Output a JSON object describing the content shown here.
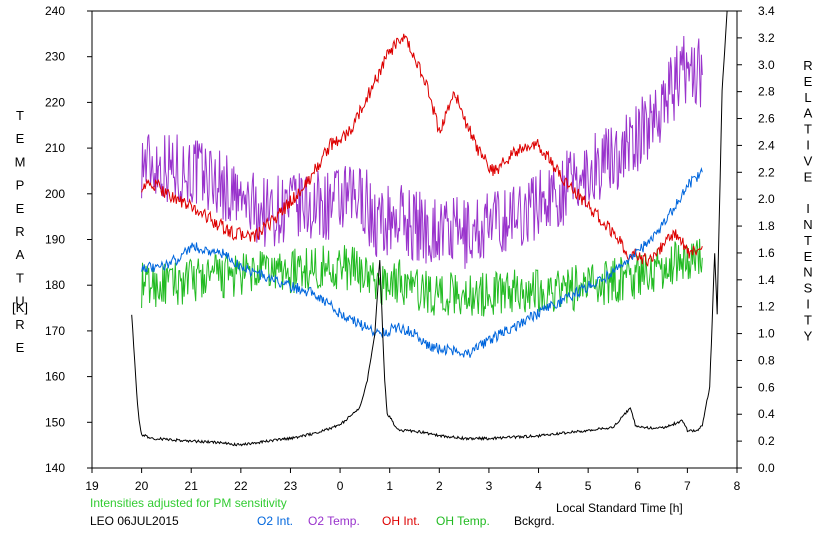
{
  "chart_data": {
    "type": "line",
    "station": "LEO 06JUL2015",
    "note": "Intensities adjusted for PM sensitivity",
    "xlabel": "Local Standard Time [h]",
    "ylabel_left_letters": [
      "T",
      "E",
      "M",
      "P",
      "E",
      "R",
      "A",
      "T",
      "U",
      "R",
      "E"
    ],
    "ylabel_left_unit": "[K]",
    "ylabel_right_letters": [
      "R",
      "E",
      "L",
      "A",
      "T",
      "I",
      "V",
      "E",
      "",
      "I",
      "N",
      "T",
      "E",
      "N",
      "S",
      "I",
      "T",
      "Y"
    ],
    "x_ticks": [
      "19",
      "20",
      "21",
      "22",
      "23",
      "0",
      "1",
      "2",
      "3",
      "4",
      "5",
      "6",
      "7",
      "8"
    ],
    "xlim": [
      19,
      32
    ],
    "ylim_left": [
      140,
      240
    ],
    "ylim_right": [
      0.0,
      3.4
    ],
    "y_left_ticks": [
      "140",
      "150",
      "160",
      "170",
      "180",
      "190",
      "200",
      "210",
      "220",
      "230",
      "240"
    ],
    "y_right_ticks": [
      "0.0",
      "0.2",
      "0.4",
      "0.6",
      "0.8",
      "1.0",
      "1.2",
      "1.4",
      "1.6",
      "1.8",
      "2.0",
      "2.2",
      "2.4",
      "2.6",
      "2.8",
      "3.0",
      "3.2",
      "3.4"
    ],
    "legend": [
      {
        "label": "O2 Int.",
        "color": "#0066dd"
      },
      {
        "label": "O2 Temp.",
        "color": "#9933cc"
      },
      {
        "label": "OH Int.",
        "color": "#dd0000"
      },
      {
        "label": "OH Temp.",
        "color": "#22bb22"
      },
      {
        "label": "Bckgrd.",
        "color": "#000000"
      }
    ],
    "series": [
      {
        "name": "O2 Temp.",
        "axis": "left",
        "color": "#9933cc",
        "noise": 8,
        "x": [
          20.0,
          20.5,
          21.0,
          21.5,
          22.0,
          22.5,
          23.0,
          23.5,
          24.0,
          24.5,
          24.7,
          25.2,
          25.5,
          26.0,
          26.5,
          27.0,
          27.5,
          28.0,
          28.5,
          29.0,
          29.5,
          30.0,
          30.5,
          31.0,
          31.3
        ],
        "y": [
          207,
          206,
          205,
          203,
          198,
          196,
          197,
          197,
          198,
          199,
          193,
          195,
          193,
          192,
          191,
          193,
          195,
          198,
          201,
          205,
          208,
          212,
          220,
          228,
          226
        ]
      },
      {
        "name": "OH Temp.",
        "axis": "left",
        "color": "#22bb22",
        "noise": 5,
        "x": [
          20.0,
          20.5,
          21.0,
          21.5,
          22.0,
          22.5,
          23.0,
          23.5,
          24.0,
          24.5,
          24.7,
          25.2,
          25.5,
          26.0,
          26.5,
          27.0,
          27.5,
          28.0,
          28.5,
          29.0,
          29.5,
          30.0,
          30.5,
          31.0,
          31.3
        ],
        "y": [
          180,
          180,
          181,
          182,
          182,
          183,
          183,
          184,
          184,
          183,
          180,
          181,
          179,
          178,
          178,
          178,
          179,
          179,
          179,
          180,
          181,
          182,
          184,
          186,
          186
        ]
      },
      {
        "name": "OH Int.",
        "axis": "right",
        "color": "#dd0000",
        "noise": 0.05,
        "x": [
          20.0,
          20.3,
          20.7,
          21.2,
          21.6,
          21.8,
          22.3,
          22.8,
          23.3,
          23.8,
          24.2,
          24.6,
          25.0,
          25.3,
          25.7,
          26.0,
          26.3,
          26.5,
          26.8,
          27.1,
          27.5,
          28.0,
          28.5,
          29.0,
          29.5,
          29.8,
          30.2,
          30.5,
          30.8,
          31.0,
          31.3
        ],
        "y": [
          2.1,
          2.1,
          2.0,
          1.9,
          1.8,
          1.75,
          1.72,
          1.9,
          2.1,
          2.4,
          2.5,
          2.8,
          3.1,
          3.2,
          2.9,
          2.5,
          2.8,
          2.6,
          2.35,
          2.2,
          2.35,
          2.4,
          2.15,
          1.95,
          1.75,
          1.6,
          1.55,
          1.65,
          1.75,
          1.6,
          1.65
        ]
      },
      {
        "name": "O2 Int.",
        "axis": "right",
        "color": "#0066dd",
        "noise": 0.04,
        "x": [
          20.0,
          20.3,
          20.7,
          21.0,
          21.3,
          21.6,
          22.0,
          22.5,
          23.0,
          23.5,
          24.0,
          24.5,
          24.8,
          25.2,
          25.5,
          25.8,
          26.2,
          26.6,
          27.0,
          27.5,
          28.0,
          28.5,
          29.0,
          29.5,
          30.0,
          30.5,
          31.0,
          31.3
        ],
        "y": [
          1.5,
          1.48,
          1.55,
          1.65,
          1.62,
          1.6,
          1.5,
          1.42,
          1.35,
          1.3,
          1.15,
          1.05,
          1.0,
          1.05,
          1.0,
          0.9,
          0.88,
          0.85,
          0.95,
          1.05,
          1.15,
          1.25,
          1.35,
          1.45,
          1.6,
          1.8,
          2.1,
          2.2
        ]
      },
      {
        "name": "Bckgrd.",
        "axis": "right",
        "color": "#000000",
        "noise": 0.01,
        "x": [
          19.8,
          19.9,
          19.95,
          20.0,
          20.2,
          20.6,
          21.0,
          21.5,
          22.0,
          22.5,
          23.0,
          23.5,
          24.0,
          24.4,
          24.55,
          24.7,
          24.8,
          24.9,
          24.95,
          25.0,
          25.1,
          25.2,
          25.6,
          26.0,
          26.5,
          27.0,
          27.5,
          28.0,
          28.5,
          29.0,
          29.5,
          29.85,
          29.95,
          30.1,
          30.5,
          30.9,
          31.0,
          31.2,
          31.3,
          31.45,
          31.55,
          31.6,
          31.7,
          31.8
        ],
        "y": [
          1.15,
          0.55,
          0.35,
          0.25,
          0.22,
          0.21,
          0.2,
          0.19,
          0.17,
          0.2,
          0.22,
          0.26,
          0.32,
          0.45,
          0.65,
          1.0,
          1.55,
          0.65,
          0.4,
          0.38,
          0.32,
          0.28,
          0.27,
          0.24,
          0.22,
          0.22,
          0.23,
          0.24,
          0.26,
          0.28,
          0.3,
          0.45,
          0.32,
          0.3,
          0.3,
          0.35,
          0.28,
          0.28,
          0.32,
          0.6,
          1.6,
          1.15,
          2.8,
          3.4
        ]
      }
    ]
  }
}
